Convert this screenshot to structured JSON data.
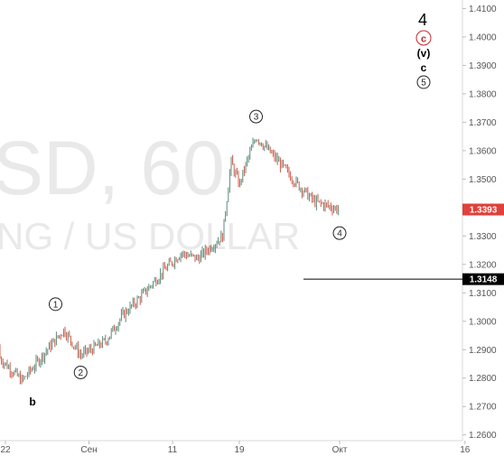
{
  "watermark": {
    "symbol": "SD, 60",
    "description": "NG / US DOLLAR"
  },
  "colors": {
    "background": "#ffffff",
    "candle_up": "#5b8a7a",
    "candle_down": "#d05a4a",
    "current_price_tag": "#e0413a",
    "level_tag": "#000000",
    "red_circle": "#c62828"
  },
  "annotations": {
    "wave_four": "4",
    "wave_c_red": "c",
    "wave_v": "(v)",
    "wave_c": "c",
    "wave_five": "5",
    "wave_b": "b"
  },
  "chart_data": {
    "type": "candlestick",
    "title": "",
    "xlabel": "",
    "ylabel": "",
    "ylim": [
      1.258,
      1.413
    ],
    "x_tick_labels": [
      "22",
      "Сен",
      "11",
      "19",
      "Окт",
      "16"
    ],
    "y_tick_labels": [
      "1.2600",
      "1.2700",
      "1.2800",
      "1.2900",
      "1.3000",
      "1.3100",
      "1.3200",
      "1.3300",
      "1.3400",
      "1.3500",
      "1.3600",
      "1.3700",
      "1.3800",
      "1.3900",
      "1.4000",
      "1.4100"
    ],
    "y_ticks": [
      1.26,
      1.27,
      1.28,
      1.29,
      1.3,
      1.31,
      1.32,
      1.33,
      1.34,
      1.35,
      1.36,
      1.37,
      1.38,
      1.39,
      1.4,
      1.41
    ],
    "grid": false,
    "current_price": {
      "label": "1.3393",
      "value": 1.3393
    },
    "horizontal_level": {
      "label": "1.3148",
      "value": 1.3148
    },
    "price_path": {
      "dates": [
        "Aug 20",
        "Aug 22",
        "Aug 24",
        "Aug 27",
        "Aug 29",
        "Aug 31",
        "Sep 3",
        "Sep 5",
        "Sep 7",
        "Sep 10",
        "Sep 12",
        "Sep 14",
        "Sep 17",
        "Sep 18",
        "Sep 19",
        "Sep 20",
        "Sep 21",
        "Sep 24",
        "Sep 26",
        "Sep 28",
        "Oct 1"
      ],
      "values": [
        1.291,
        1.285,
        1.279,
        1.29,
        1.297,
        1.288,
        1.293,
        1.302,
        1.308,
        1.318,
        1.324,
        1.322,
        1.33,
        1.356,
        1.348,
        1.357,
        1.365,
        1.355,
        1.348,
        1.342,
        1.3393
      ]
    },
    "wave_labels": [
      {
        "label": "1",
        "date": "Aug 28",
        "value": 1.306
      },
      {
        "label": "2",
        "date": "Aug 31",
        "value": 1.282
      },
      {
        "label": "3",
        "date": "Sep 21",
        "value": 1.372
      },
      {
        "label": "4",
        "date": "Oct 1",
        "value": 1.331
      }
    ]
  }
}
